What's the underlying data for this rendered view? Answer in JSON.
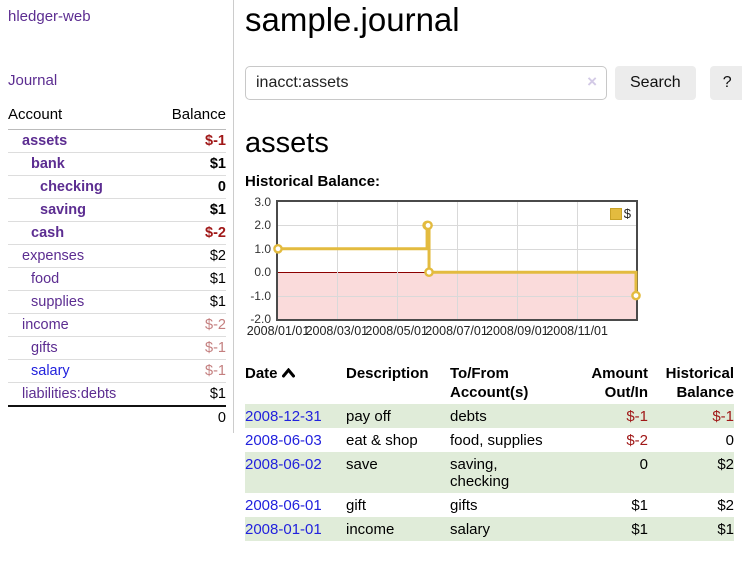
{
  "sidebar": {
    "brand": "hledger-web",
    "journal_label": "Journal",
    "accounts_header": {
      "account": "Account",
      "balance": "Balance"
    },
    "accounts": [
      {
        "name": "assets",
        "level": 1,
        "bold": true,
        "link_color": "purple",
        "balance": "$-1",
        "balance_style": "neg-strong"
      },
      {
        "name": "bank",
        "level": 2,
        "bold": true,
        "link_color": "purple",
        "balance": "$1",
        "balance_style": "normal"
      },
      {
        "name": "checking",
        "level": 3,
        "bold": true,
        "link_color": "purple",
        "balance": "0",
        "balance_style": "normal"
      },
      {
        "name": "saving",
        "level": 3,
        "bold": true,
        "link_color": "purple",
        "balance": "$1",
        "balance_style": "normal"
      },
      {
        "name": "cash",
        "level": 2,
        "bold": true,
        "link_color": "purple",
        "balance": "$-2",
        "balance_style": "neg-strong"
      },
      {
        "name": "expenses",
        "level": 1,
        "bold": false,
        "link_color": "purple",
        "balance": "$2",
        "balance_style": "normal"
      },
      {
        "name": "food",
        "level": 2,
        "bold": false,
        "link_color": "purple",
        "balance": "$1",
        "balance_style": "normal"
      },
      {
        "name": "supplies",
        "level": 2,
        "bold": false,
        "link_color": "purple",
        "balance": "$1",
        "balance_style": "normal"
      },
      {
        "name": "income",
        "level": 1,
        "bold": false,
        "link_color": "purple",
        "balance": "$-2",
        "balance_style": "neg-soft"
      },
      {
        "name": "gifts",
        "level": 2,
        "bold": false,
        "link_color": "purple",
        "balance": "$-1",
        "balance_style": "neg-soft"
      },
      {
        "name": "salary",
        "level": 2,
        "bold": false,
        "link_color": "blue",
        "balance": "$-1",
        "balance_style": "neg-soft"
      },
      {
        "name": "liabilities:debts",
        "level": 1,
        "bold": false,
        "link_color": "purple",
        "balance": "$1",
        "balance_style": "normal"
      }
    ],
    "total": "0"
  },
  "main": {
    "title": "sample.journal",
    "section_title": "assets"
  },
  "search": {
    "value": "inacct:assets",
    "clear": "×",
    "search_label": "Search",
    "help_label": "?"
  },
  "chart_data": {
    "type": "line",
    "title": "Historical Balance:",
    "legend": "$",
    "legend_position": "top-right",
    "series": [
      {
        "name": "$",
        "color": "#e3bb3f",
        "step": true,
        "points": [
          [
            "2008-01-01",
            1
          ],
          [
            "2008-06-01",
            2
          ],
          [
            "2008-06-02",
            2
          ],
          [
            "2008-06-03",
            0
          ],
          [
            "2008-12-31",
            -1
          ]
        ]
      }
    ],
    "xlim": [
      "2008-01-01",
      "2008-12-31"
    ],
    "ylim": [
      -2,
      3
    ],
    "yticks": [
      "3.0",
      "2.0",
      "1.0",
      "0.0",
      "-1.0",
      "-2.0"
    ],
    "xticks": [
      "2008/01/01",
      "2008/03/01",
      "2008/05/01",
      "2008/07/01",
      "2008/09/01",
      "2008/11/01"
    ],
    "grid": true,
    "negative_region_color": "#fadbdb",
    "zero_line_color": "#8b0000"
  },
  "register": {
    "headers": {
      "date": "Date",
      "description": "Description",
      "account_line1": "To/From",
      "account_line2": "Account(s)",
      "amount_line1": "Amount",
      "amount_line2": "Out/In",
      "balance_line1": "Historical",
      "balance_line2": "Balance"
    },
    "rows": [
      {
        "date": "2008-12-31",
        "description": "pay off",
        "accounts": "debts",
        "amount": "$-1",
        "balance": "$-1"
      },
      {
        "date": "2008-06-03",
        "description": "eat & shop",
        "accounts": "food, supplies",
        "amount": "$-2",
        "balance": "0"
      },
      {
        "date": "2008-06-02",
        "description": "save",
        "accounts": "saving,\nchecking",
        "amount": "0",
        "balance": "$2"
      },
      {
        "date": "2008-06-01",
        "description": "gift",
        "accounts": "gifts",
        "amount": "$1",
        "balance": "$2"
      },
      {
        "date": "2008-01-01",
        "description": "income",
        "accounts": "salary",
        "amount": "$1",
        "balance": "$1"
      }
    ]
  }
}
